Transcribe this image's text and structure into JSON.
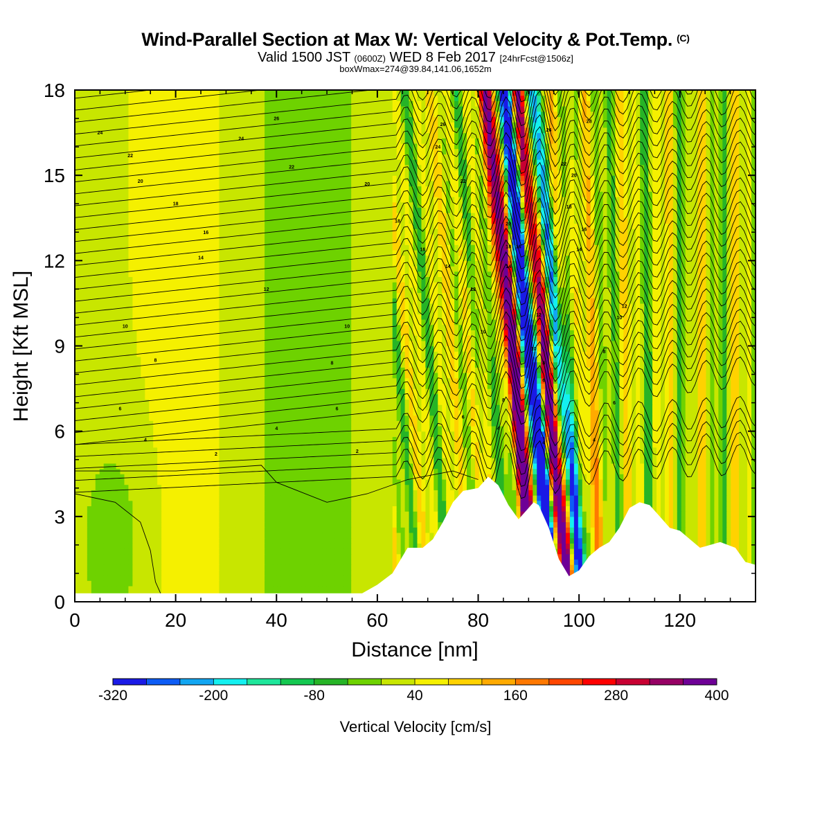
{
  "header": {
    "title": "Wind-Parallel Section at Max W: Vertical Velocity & Pot.Temp.",
    "title_mark": "(C)",
    "sub_a": "Valid 1500 JST",
    "sub_b": "(0600Z)",
    "sub_c": "WED 8 Feb 2017",
    "sub_d": "[24hrFcst@1506z]",
    "sub_line2": "boxWmax=274@39.84,141.06,1652m"
  },
  "chart_data": {
    "type": "heatmap",
    "title": "Wind-Parallel Section at Max W: Vertical Velocity & Pot.Temp.",
    "xlabel": "Distance [nm]",
    "ylabel": "Height [Kft MSL]",
    "xlim": [
      0,
      135
    ],
    "ylim": [
      0,
      18
    ],
    "x_ticks": [
      0,
      20,
      40,
      60,
      80,
      100,
      120
    ],
    "y_ticks": [
      0,
      3,
      6,
      9,
      12,
      15,
      18
    ],
    "colorbar": {
      "title": "Vertical Velocity [cm/s]",
      "min": -320,
      "max": 400,
      "step": 40,
      "label_values": [
        "-320",
        "-200",
        "-80",
        "40",
        "160",
        "280",
        "400"
      ],
      "colors": [
        "#1a1ae6",
        "#0d5cf5",
        "#12a6f2",
        "#14f0f0",
        "#1ee69b",
        "#14c850",
        "#26b426",
        "#6ed200",
        "#c8e600",
        "#f5f000",
        "#ffd200",
        "#ffaa00",
        "#ff7800",
        "#ff4600",
        "#ff0000",
        "#c80032",
        "#960064",
        "#6e0096"
      ]
    },
    "terrain_kft": [
      [
        0,
        0.3
      ],
      [
        10,
        0.3
      ],
      [
        20,
        0.3
      ],
      [
        30,
        0.3
      ],
      [
        40,
        0.3
      ],
      [
        50,
        0.3
      ],
      [
        57,
        0.3
      ],
      [
        60,
        0.6
      ],
      [
        63,
        1.0
      ],
      [
        66,
        1.9
      ],
      [
        69,
        1.9
      ],
      [
        71,
        2.2
      ],
      [
        73,
        2.8
      ],
      [
        75,
        3.5
      ],
      [
        77,
        3.9
      ],
      [
        80,
        4.0
      ],
      [
        82,
        4.4
      ],
      [
        84,
        4.1
      ],
      [
        86,
        3.4
      ],
      [
        88,
        2.9
      ],
      [
        90,
        3.3
      ],
      [
        91,
        3.5
      ],
      [
        92,
        3.4
      ],
      [
        94,
        2.6
      ],
      [
        96,
        1.5
      ],
      [
        98,
        0.9
      ],
      [
        100,
        1.1
      ],
      [
        102,
        1.6
      ],
      [
        104,
        1.9
      ],
      [
        106,
        2.1
      ],
      [
        108,
        2.6
      ],
      [
        110,
        3.3
      ],
      [
        112,
        3.5
      ],
      [
        114,
        3.4
      ],
      [
        116,
        3.0
      ],
      [
        118,
        2.6
      ],
      [
        120,
        2.5
      ],
      [
        122,
        2.2
      ],
      [
        124,
        1.9
      ],
      [
        128,
        2.1
      ],
      [
        131,
        1.9
      ],
      [
        133,
        1.4
      ],
      [
        135,
        1.3
      ]
    ],
    "theta_labels": [
      {
        "x": 5,
        "y": 16.5,
        "text": "24"
      },
      {
        "x": 11,
        "y": 15.7,
        "text": "22"
      },
      {
        "x": 13,
        "y": 14.8,
        "text": "20"
      },
      {
        "x": 20,
        "y": 14.0,
        "text": "18"
      },
      {
        "x": 26,
        "y": 13.0,
        "text": "16"
      },
      {
        "x": 25,
        "y": 12.1,
        "text": "14"
      },
      {
        "x": 38,
        "y": 11.0,
        "text": "12"
      },
      {
        "x": 10,
        "y": 9.7,
        "text": "10"
      },
      {
        "x": 16,
        "y": 8.5,
        "text": "8"
      },
      {
        "x": 9,
        "y": 6.8,
        "text": "6"
      },
      {
        "x": 14,
        "y": 5.7,
        "text": "4"
      },
      {
        "x": 28,
        "y": 5.2,
        "text": "2"
      },
      {
        "x": 40,
        "y": 17.0,
        "text": "26"
      },
      {
        "x": 33,
        "y": 16.3,
        "text": "24"
      },
      {
        "x": 43,
        "y": 15.3,
        "text": "22"
      },
      {
        "x": 58,
        "y": 14.7,
        "text": "20"
      },
      {
        "x": 64,
        "y": 13.4,
        "text": "18"
      },
      {
        "x": 54,
        "y": 9.7,
        "text": "10"
      },
      {
        "x": 51,
        "y": 8.4,
        "text": "8"
      },
      {
        "x": 52,
        "y": 6.8,
        "text": "6"
      },
      {
        "x": 40,
        "y": 6.1,
        "text": "4"
      },
      {
        "x": 56,
        "y": 5.3,
        "text": "2"
      },
      {
        "x": 73,
        "y": 16.8,
        "text": "26"
      },
      {
        "x": 72,
        "y": 16.0,
        "text": "24"
      },
      {
        "x": 77,
        "y": 14.8,
        "text": "22"
      },
      {
        "x": 69,
        "y": 12.4,
        "text": "16"
      },
      {
        "x": 74,
        "y": 11.8,
        "text": "14"
      },
      {
        "x": 79,
        "y": 11.0,
        "text": "12"
      },
      {
        "x": 81,
        "y": 9.5,
        "text": "10"
      },
      {
        "x": 77,
        "y": 6.5,
        "text": "6"
      },
      {
        "x": 84,
        "y": 6.1,
        "text": "4"
      },
      {
        "x": 86,
        "y": 13.3,
        "text": "20"
      },
      {
        "x": 86,
        "y": 12.5,
        "text": "18"
      },
      {
        "x": 88,
        "y": 12.5,
        "text": "16"
      },
      {
        "x": 86,
        "y": 11.8,
        "text": "14"
      },
      {
        "x": 92,
        "y": 10.1,
        "text": "12"
      },
      {
        "x": 91,
        "y": 8.9,
        "text": "10"
      },
      {
        "x": 93,
        "y": 8.4,
        "text": "8"
      },
      {
        "x": 93,
        "y": 7.8,
        "text": "6"
      },
      {
        "x": 85,
        "y": 7.1,
        "text": "8"
      },
      {
        "x": 93,
        "y": 5.6,
        "text": "4"
      },
      {
        "x": 94,
        "y": 16.6,
        "text": "26"
      },
      {
        "x": 102,
        "y": 16.9,
        "text": "28"
      },
      {
        "x": 97,
        "y": 15.4,
        "text": "22"
      },
      {
        "x": 99,
        "y": 15.0,
        "text": "20"
      },
      {
        "x": 98,
        "y": 13.9,
        "text": "18"
      },
      {
        "x": 101,
        "y": 13.1,
        "text": "16"
      },
      {
        "x": 100,
        "y": 12.4,
        "text": "14"
      },
      {
        "x": 108,
        "y": 10.0,
        "text": "10"
      },
      {
        "x": 105,
        "y": 8.8,
        "text": "8"
      },
      {
        "x": 107,
        "y": 7.0,
        "text": "6"
      },
      {
        "x": 103,
        "y": 5.7,
        "text": "4"
      },
      {
        "x": 109,
        "y": 10.4,
        "text": "12"
      }
    ]
  }
}
